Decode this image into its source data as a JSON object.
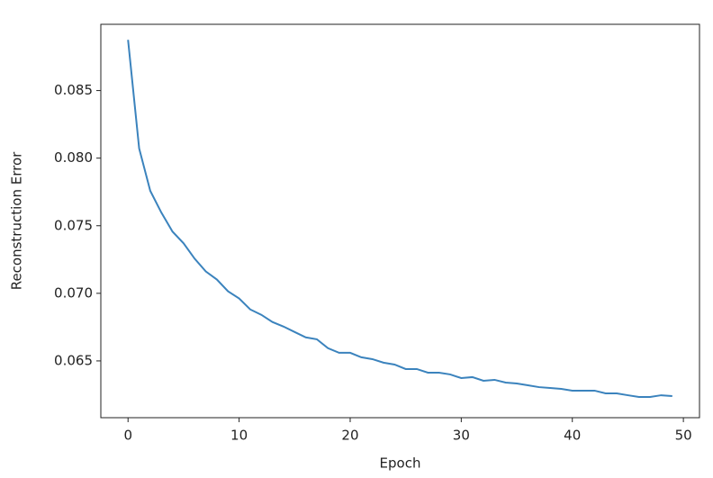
{
  "chart_data": {
    "type": "line",
    "xlabel": "Epoch",
    "ylabel": "Reconstruction Error",
    "x": [
      0,
      1,
      2,
      3,
      4,
      5,
      6,
      7,
      8,
      9,
      10,
      11,
      12,
      13,
      14,
      15,
      16,
      17,
      18,
      19,
      20,
      21,
      22,
      23,
      24,
      25,
      26,
      27,
      28,
      29,
      30,
      31,
      32,
      33,
      34,
      35,
      36,
      37,
      38,
      39,
      40,
      41,
      42,
      43,
      44,
      45,
      46,
      47,
      48,
      49
    ],
    "series": [
      {
        "color": "#3b83bd",
        "values": [
          0.08875,
          0.08072,
          0.07758,
          0.07597,
          0.07457,
          0.0737,
          0.07256,
          0.07162,
          0.07102,
          0.07015,
          0.06962,
          0.06881,
          0.06841,
          0.06788,
          0.06754,
          0.06714,
          0.06674,
          0.0666,
          0.06594,
          0.0656,
          0.0656,
          0.06527,
          0.06513,
          0.06487,
          0.06473,
          0.0644,
          0.0644,
          0.06413,
          0.06413,
          0.064,
          0.06373,
          0.0638,
          0.06353,
          0.0636,
          0.0634,
          0.06333,
          0.0632,
          0.06306,
          0.063,
          0.06293,
          0.0628,
          0.0628,
          0.0628,
          0.0626,
          0.0626,
          0.06246,
          0.06233,
          0.06233,
          0.06246,
          0.0624
        ]
      }
    ],
    "xlim": [
      -2.45,
      51.45
    ],
    "ylim": [
      0.0608,
      0.0899
    ],
    "xticks": [
      0,
      10,
      20,
      30,
      40,
      50
    ],
    "yticks": [
      0.065,
      {
        "value": 0.07,
        "label": "0.070"
      },
      0.075,
      {
        "value": 0.08,
        "label": "0.080"
      },
      0.085
    ],
    "grid": false
  }
}
